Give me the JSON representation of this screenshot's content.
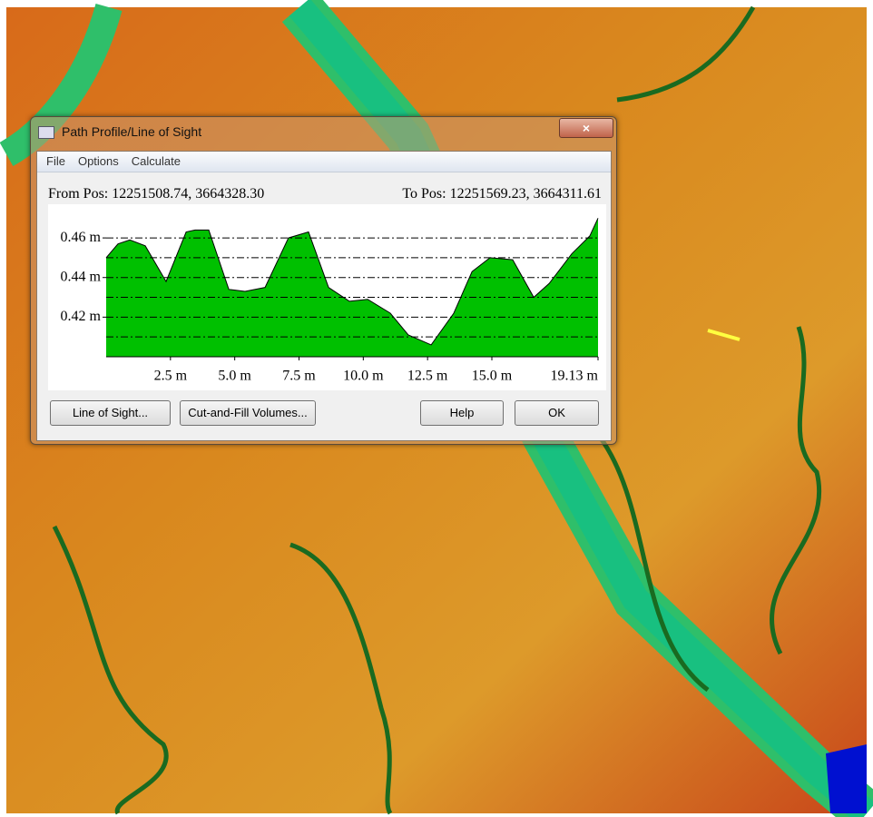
{
  "window": {
    "title": "Path Profile/Line of Sight",
    "menu": [
      "File",
      "Options",
      "Calculate"
    ],
    "from_pos": "From Pos: 12251508.74, 3664328.30",
    "to_pos": "To Pos: 12251569.23, 3664311.61",
    "buttons": [
      "Line of Sight...",
      "Cut-and-Fill Volumes...",
      "Help",
      "OK"
    ]
  },
  "chart_data": {
    "type": "area",
    "color": "#00c000",
    "x": [
      0,
      0.46,
      0.92,
      1.52,
      2.33,
      3.11,
      3.46,
      3.99,
      4.77,
      5.4,
      6.18,
      7.09,
      7.87,
      8.65,
      9.46,
      10.17,
      11.05,
      11.75,
      12.64,
      13.52,
      14.23,
      14.93,
      15.81,
      16.63,
      17.23,
      18.11,
      18.81,
      19.13
    ],
    "values": [
      0.45,
      0.457,
      0.459,
      0.456,
      0.438,
      0.463,
      0.464,
      0.464,
      0.434,
      0.433,
      0.435,
      0.46,
      0.463,
      0.435,
      0.428,
      0.429,
      0.422,
      0.411,
      0.406,
      0.422,
      0.443,
      0.45,
      0.449,
      0.43,
      0.437,
      0.452,
      0.461,
      0.47
    ],
    "xlim": [
      0,
      19.13
    ],
    "xticks": [
      {
        "value": 2.5,
        "label": "2.5 m"
      },
      {
        "value": 5.0,
        "label": "5.0 m"
      },
      {
        "value": 7.5,
        "label": "7.5 m"
      },
      {
        "value": 10.0,
        "label": "10.0 m"
      },
      {
        "value": 12.5,
        "label": "12.5 m"
      },
      {
        "value": 15.0,
        "label": "15.0 m"
      },
      {
        "value": 19.13,
        "label": "19.13 m"
      }
    ],
    "ylim": [
      0.4,
      0.477
    ],
    "yticks": [
      {
        "value": 0.46,
        "label": "0.46 m"
      },
      {
        "value": 0.44,
        "label": "0.44 m"
      },
      {
        "value": 0.42,
        "label": "0.42 m"
      }
    ],
    "grid_lines": [
      0.46,
      0.45,
      0.44,
      0.43,
      0.42,
      0.41
    ]
  }
}
